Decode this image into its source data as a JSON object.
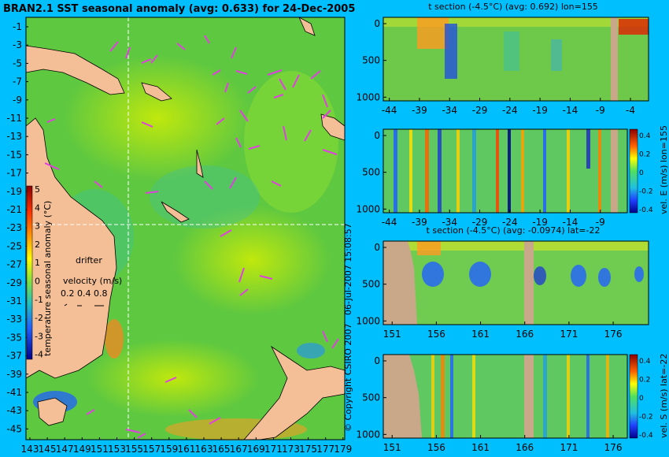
{
  "title": "BRAN2.1 SST seasonal anomaly (avg: 0.633) for 24-Dec-2005",
  "copyright": "© Copyright CSIRO 2007",
  "timestamp": "06-Jul-2007 15:08:57",
  "map": {
    "lat_labels": [
      "-1",
      "-3",
      "-5",
      "-7",
      "-9",
      "-11",
      "-13",
      "-15",
      "-17",
      "-19",
      "-21",
      "-23",
      "-25",
      "-27",
      "-29",
      "-31",
      "-33",
      "-35",
      "-37",
      "-39",
      "-41",
      "-43",
      "-45"
    ],
    "lon_labels": [
      "143",
      "145",
      "147",
      "149",
      "151",
      "153",
      "155",
      "157",
      "159",
      "161",
      "163",
      "165",
      "167",
      "169",
      "171",
      "173",
      "175",
      "177",
      "179"
    ],
    "colorbar_title": "temperature seasonal anomaly (°C)",
    "colorbar_ticks": [
      "5",
      "4",
      "3",
      "2",
      "1",
      "0",
      "-1",
      "-2",
      "-3",
      "-4"
    ],
    "drifter_label": "drifter",
    "velocity_label": "velocity (m/s)",
    "velocity_scale": "0.2 0.4 0.8",
    "land_color": "#f4bf96",
    "drifter_color": "#e040e0",
    "crosshair_lon": 155,
    "crosshair_lat": -22
  },
  "panels": [
    {
      "title": "t section (-4.5°C) (avg: 0.692) lon=155",
      "x_ticks": [
        "-44",
        "-39",
        "-34",
        "-29",
        "-24",
        "-19",
        "-14",
        "-9",
        "-4"
      ],
      "y_ticks": [
        "0",
        "500",
        "1000"
      ],
      "side_label": ""
    },
    {
      "title": "",
      "x_ticks": [
        "-44",
        "-39",
        "-34",
        "-29",
        "-24",
        "-19",
        "-14",
        "-9",
        "-4"
      ],
      "y_ticks": [
        "0",
        "500",
        "1000"
      ],
      "side_label": "vel. E (m/s) lon=155",
      "cb_ticks": [
        "0.4",
        "0.2",
        "0",
        "-0.2",
        "-0.4"
      ]
    },
    {
      "title": "t section (-4.5°C) (avg: -0.0974) lat=-22",
      "x_ticks": [
        "151",
        "156",
        "161",
        "166",
        "171",
        "176"
      ],
      "y_ticks": [
        "0",
        "500",
        "1000"
      ],
      "side_label": ""
    },
    {
      "title": "",
      "x_ticks": [
        "151",
        "156",
        "161",
        "166",
        "171",
        "176"
      ],
      "y_ticks": [
        "0",
        "500",
        "1000"
      ],
      "side_label": "vel. S (m/s) lat=-22",
      "cb_ticks": [
        "0.4",
        "0.2",
        "0",
        "-0.2",
        "-0.4"
      ]
    }
  ],
  "chart_data": [
    {
      "type": "heatmap",
      "title": "BRAN2.1 SST seasonal anomaly (avg: 0.633) for 24-Dec-2005",
      "xlabel": "",
      "ylabel": "",
      "xlim": [
        143,
        180
      ],
      "ylim": [
        -45,
        0
      ],
      "colorbar": {
        "label": "temperature seasonal anomaly (°C)",
        "range": [
          -4,
          5
        ]
      },
      "mean_value": 0.633
    },
    {
      "type": "heatmap",
      "title": "t section (-4.5°C) (avg: 0.692) lon=155",
      "x": [
        -44,
        -39,
        -34,
        -29,
        -24,
        -19,
        -14,
        -9,
        -4
      ],
      "xlim": [
        -45,
        -1
      ],
      "ylim": [
        1050,
        0
      ],
      "mean_value": 0.692
    },
    {
      "type": "heatmap",
      "title": "",
      "x": [
        -44,
        -39,
        -34,
        -29,
        -24,
        -19,
        -14,
        -9,
        -4
      ],
      "xlim": [
        -45,
        -1
      ],
      "ylim": [
        1050,
        0
      ],
      "colorbar": {
        "label": "vel. E (m/s) lon=155",
        "range": [
          -0.4,
          0.4
        ]
      }
    },
    {
      "type": "heatmap",
      "title": "t section (-4.5°C) (avg: -0.0974) lat=-22",
      "x": [
        151,
        156,
        161,
        166,
        171,
        176
      ],
      "xlim": [
        150,
        180
      ],
      "ylim": [
        1050,
        0
      ],
      "mean_value": -0.0974
    },
    {
      "type": "heatmap",
      "title": "",
      "x": [
        151,
        156,
        161,
        166,
        171,
        176
      ],
      "xlim": [
        150,
        180
      ],
      "ylim": [
        1050,
        0
      ],
      "colorbar": {
        "label": "vel. S (m/s) lat=-22",
        "range": [
          -0.4,
          0.4
        ]
      }
    }
  ]
}
